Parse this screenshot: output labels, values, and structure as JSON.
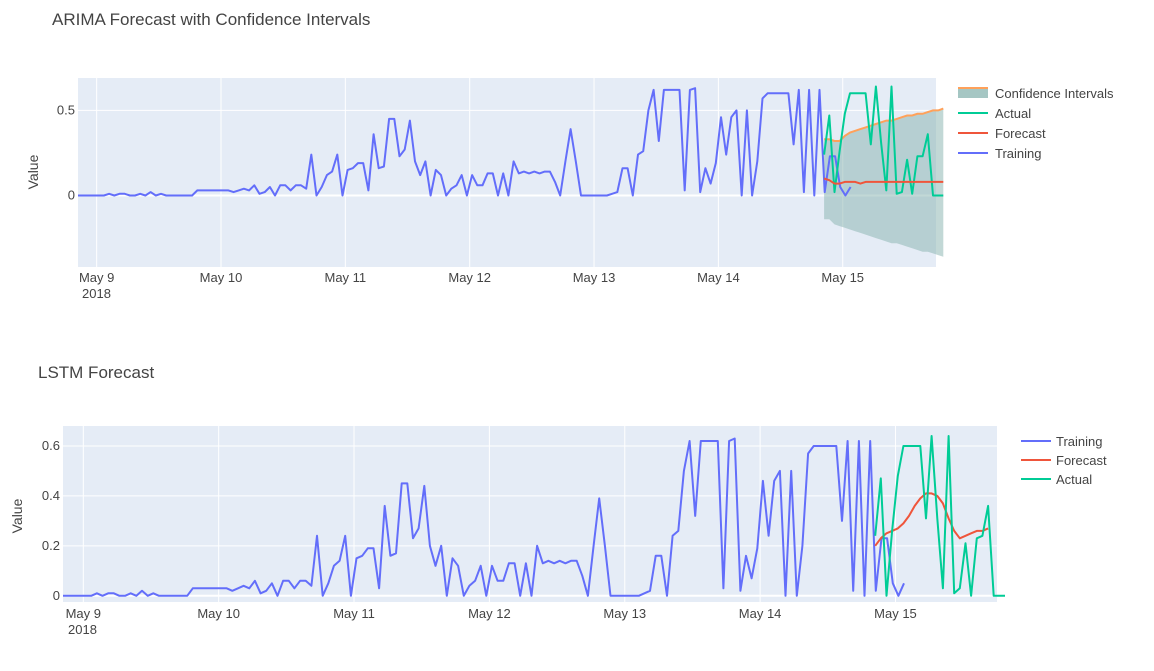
{
  "chart_data": [
    {
      "type": "line",
      "title": "ARIMA Forecast with Confidence Intervals",
      "ylabel": "Value",
      "x_unit": "days since May 9 2018 00:00",
      "xlim": [
        -0.15,
        6.75
      ],
      "ylim": [
        -0.42,
        0.69
      ],
      "x_ticks": [
        0,
        1,
        2,
        3,
        4,
        5,
        6
      ],
      "x_tick_labels": [
        "May 9",
        "May 10",
        "May 11",
        "May 12",
        "May 13",
        "May 14",
        "May 15"
      ],
      "x_year_label": "2018",
      "y_ticks": [
        0,
        0.5
      ],
      "y_tick_labels": [
        "0",
        "0.5"
      ],
      "legend": [
        {
          "label": "Confidence Intervals",
          "color": "#FFA15A",
          "kind": "band"
        },
        {
          "label": "Actual",
          "color": "#00CC96",
          "kind": "line"
        },
        {
          "label": "Forecast",
          "color": "#EF553B",
          "kind": "line"
        },
        {
          "label": "Training",
          "color": "#636EFA",
          "kind": "line"
        }
      ],
      "series": [
        {
          "name": "Training",
          "color": "#636EFA",
          "x_start": -0.15,
          "x_step": 0.0417,
          "values": [
            0.0,
            0.0,
            0.0,
            0.0,
            0.0,
            0.0,
            0.01,
            0.0,
            0.01,
            0.01,
            0.0,
            0.0,
            0.01,
            0.0,
            0.02,
            0.0,
            0.01,
            0.0,
            0.0,
            0.0,
            0.0,
            0.0,
            0.0,
            0.03,
            0.03,
            0.03,
            0.03,
            0.03,
            0.03,
            0.03,
            0.02,
            0.03,
            0.04,
            0.03,
            0.06,
            0.01,
            0.02,
            0.05,
            0.0,
            0.06,
            0.06,
            0.03,
            0.06,
            0.06,
            0.04,
            0.24,
            0.0,
            0.05,
            0.12,
            0.14,
            0.24,
            0.0,
            0.15,
            0.16,
            0.19,
            0.19,
            0.03,
            0.36,
            0.16,
            0.17,
            0.45,
            0.45,
            0.23,
            0.27,
            0.44,
            0.2,
            0.12,
            0.2,
            0.0,
            0.15,
            0.12,
            0.0,
            0.04,
            0.06,
            0.12,
            0.0,
            0.12,
            0.06,
            0.06,
            0.13,
            0.13,
            0.0,
            0.13,
            0.0,
            0.2,
            0.13,
            0.14,
            0.13,
            0.14,
            0.13,
            0.14,
            0.14,
            0.08,
            0.0,
            0.2,
            0.39,
            0.2,
            0.0,
            0.0,
            0.0,
            0.0,
            0.0,
            0.0,
            0.01,
            0.02,
            0.16,
            0.16,
            0.0,
            0.24,
            0.26,
            0.5,
            0.62,
            0.32,
            0.62,
            0.62,
            0.62,
            0.62,
            0.03,
            0.62,
            0.63,
            0.02,
            0.16,
            0.07,
            0.19,
            0.46,
            0.24,
            0.46,
            0.5,
            0.0,
            0.5,
            0.0,
            0.2,
            0.57,
            0.6,
            0.6,
            0.6,
            0.6,
            0.6,
            0.3,
            0.62,
            0.02,
            0.62,
            0.0,
            0.62,
            0.02,
            0.23,
            0.23,
            0.05,
            0.0,
            0.05
          ]
        },
        {
          "name": "Actual",
          "color": "#00CC96",
          "x_start": 5.85,
          "x_step": 0.0417,
          "values": [
            0.24,
            0.47,
            0.02,
            0.26,
            0.48,
            0.6,
            0.6,
            0.6,
            0.6,
            0.3,
            0.64,
            0.31,
            0.03,
            0.64,
            0.01,
            0.02,
            0.21,
            0.01,
            0.23,
            0.23,
            0.36,
            0.0,
            0.0,
            0.0
          ]
        },
        {
          "name": "Forecast",
          "color": "#EF553B",
          "x_start": 5.85,
          "x_step": 0.0417,
          "values": [
            0.1,
            0.09,
            0.07,
            0.07,
            0.08,
            0.08,
            0.08,
            0.07,
            0.08,
            0.08,
            0.08,
            0.08,
            0.08,
            0.08,
            0.08,
            0.08,
            0.08,
            0.08,
            0.08,
            0.08,
            0.08,
            0.08,
            0.08,
            0.08
          ]
        }
      ],
      "confidence_band": {
        "name": "Confidence Intervals",
        "x_start": 5.85,
        "x_step": 0.0417,
        "upper": [
          0.33,
          0.33,
          0.32,
          0.32,
          0.35,
          0.37,
          0.38,
          0.39,
          0.4,
          0.41,
          0.42,
          0.43,
          0.44,
          0.44,
          0.45,
          0.46,
          0.47,
          0.47,
          0.48,
          0.48,
          0.49,
          0.5,
          0.5,
          0.51
        ],
        "lower": [
          -0.14,
          -0.14,
          -0.17,
          -0.18,
          -0.19,
          -0.2,
          -0.21,
          -0.22,
          -0.23,
          -0.24,
          -0.25,
          -0.26,
          -0.27,
          -0.28,
          -0.28,
          -0.29,
          -0.3,
          -0.31,
          -0.32,
          -0.33,
          -0.33,
          -0.34,
          -0.35,
          -0.36
        ]
      }
    },
    {
      "type": "line",
      "title": "LSTM Forecast",
      "ylabel": "Value",
      "x_unit": "days since May 9 2018 00:00",
      "xlim": [
        -0.15,
        6.75
      ],
      "ylim": [
        -0.025,
        0.68
      ],
      "x_ticks": [
        0,
        1,
        2,
        3,
        4,
        5,
        6
      ],
      "x_tick_labels": [
        "May 9",
        "May 10",
        "May 11",
        "May 12",
        "May 13",
        "May 14",
        "May 15"
      ],
      "x_year_label": "2018",
      "y_ticks": [
        0,
        0.2,
        0.4,
        0.6
      ],
      "y_tick_labels": [
        "0",
        "0.2",
        "0.4",
        "0.6"
      ],
      "legend": [
        {
          "label": "Training",
          "color": "#636EFA",
          "kind": "line"
        },
        {
          "label": "Forecast",
          "color": "#EF553B",
          "kind": "line"
        },
        {
          "label": "Actual",
          "color": "#00CC96",
          "kind": "line"
        }
      ],
      "series": [
        {
          "name": "Training",
          "color": "#636EFA",
          "x_start": -0.15,
          "x_step": 0.0417,
          "values": [
            0.0,
            0.0,
            0.0,
            0.0,
            0.0,
            0.0,
            0.01,
            0.0,
            0.01,
            0.01,
            0.0,
            0.0,
            0.01,
            0.0,
            0.02,
            0.0,
            0.01,
            0.0,
            0.0,
            0.0,
            0.0,
            0.0,
            0.0,
            0.03,
            0.03,
            0.03,
            0.03,
            0.03,
            0.03,
            0.03,
            0.02,
            0.03,
            0.04,
            0.03,
            0.06,
            0.01,
            0.02,
            0.05,
            0.0,
            0.06,
            0.06,
            0.03,
            0.06,
            0.06,
            0.04,
            0.24,
            0.0,
            0.05,
            0.12,
            0.14,
            0.24,
            0.0,
            0.15,
            0.16,
            0.19,
            0.19,
            0.03,
            0.36,
            0.16,
            0.17,
            0.45,
            0.45,
            0.23,
            0.27,
            0.44,
            0.2,
            0.12,
            0.2,
            0.0,
            0.15,
            0.12,
            0.0,
            0.04,
            0.06,
            0.12,
            0.0,
            0.12,
            0.06,
            0.06,
            0.13,
            0.13,
            0.0,
            0.13,
            0.0,
            0.2,
            0.13,
            0.14,
            0.13,
            0.14,
            0.13,
            0.14,
            0.14,
            0.08,
            0.0,
            0.2,
            0.39,
            0.2,
            0.0,
            0.0,
            0.0,
            0.0,
            0.0,
            0.0,
            0.01,
            0.02,
            0.16,
            0.16,
            0.0,
            0.24,
            0.26,
            0.5,
            0.62,
            0.32,
            0.62,
            0.62,
            0.62,
            0.62,
            0.03,
            0.62,
            0.63,
            0.02,
            0.16,
            0.07,
            0.19,
            0.46,
            0.24,
            0.46,
            0.5,
            0.0,
            0.5,
            0.0,
            0.2,
            0.57,
            0.6,
            0.6,
            0.6,
            0.6,
            0.6,
            0.3,
            0.62,
            0.02,
            0.62,
            0.0,
            0.62,
            0.02,
            0.23,
            0.23,
            0.05,
            0.0,
            0.05
          ]
        },
        {
          "name": "Forecast",
          "color": "#EF553B",
          "x_start": 5.85,
          "x_step": 0.0417,
          "values": [
            0.2,
            0.23,
            0.25,
            0.26,
            0.27,
            0.29,
            0.32,
            0.36,
            0.39,
            0.41,
            0.41,
            0.4,
            0.37,
            0.31,
            0.26,
            0.23,
            0.24,
            0.25,
            0.26,
            0.26,
            0.27
          ]
        },
        {
          "name": "Actual",
          "color": "#00CC96",
          "x_start": 5.85,
          "x_step": 0.0417,
          "values": [
            0.24,
            0.47,
            0.0,
            0.26,
            0.48,
            0.6,
            0.6,
            0.6,
            0.6,
            0.31,
            0.64,
            0.31,
            0.03,
            0.64,
            0.01,
            0.03,
            0.21,
            0.0,
            0.23,
            0.24,
            0.36,
            0.0,
            0.0,
            0.0
          ]
        }
      ]
    }
  ]
}
